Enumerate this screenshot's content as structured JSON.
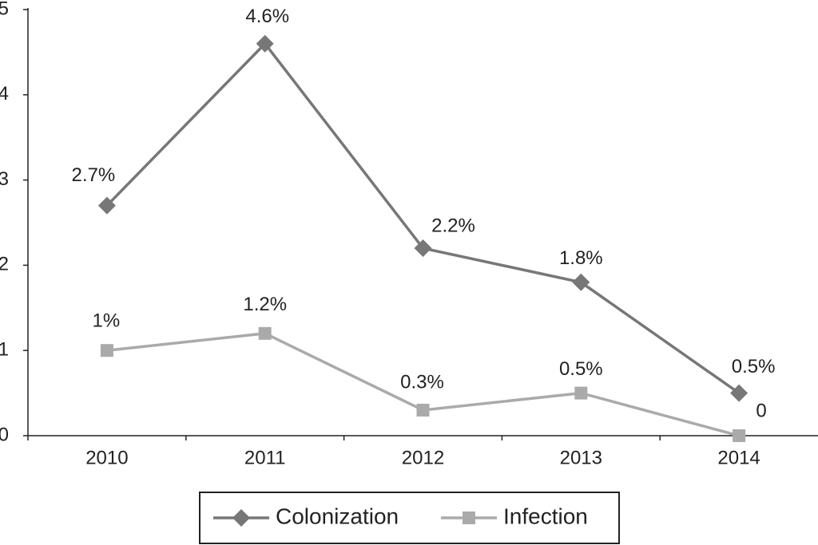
{
  "chart_data": {
    "type": "line",
    "categories": [
      "2010",
      "2011",
      "2012",
      "2013",
      "2014"
    ],
    "series": [
      {
        "name": "Colonization",
        "color": "#777777",
        "marker": "diamond",
        "values": [
          2.7,
          4.6,
          2.2,
          1.8,
          0.5
        ],
        "value_labels": [
          "2.7%",
          "4.6%",
          "2.2%",
          "1.8%",
          "0.5%"
        ]
      },
      {
        "name": "Infection",
        "color": "#aaaaaa",
        "marker": "square",
        "values": [
          1,
          1.2,
          0.3,
          0.5,
          0
        ],
        "value_labels": [
          "1%",
          "1.2%",
          "0.3%",
          "0.5%",
          "0"
        ]
      }
    ],
    "ylim": [
      0,
      5
    ],
    "yticks": [
      0,
      1,
      2,
      3,
      4,
      5
    ],
    "grid": false,
    "legend": "bottom"
  }
}
